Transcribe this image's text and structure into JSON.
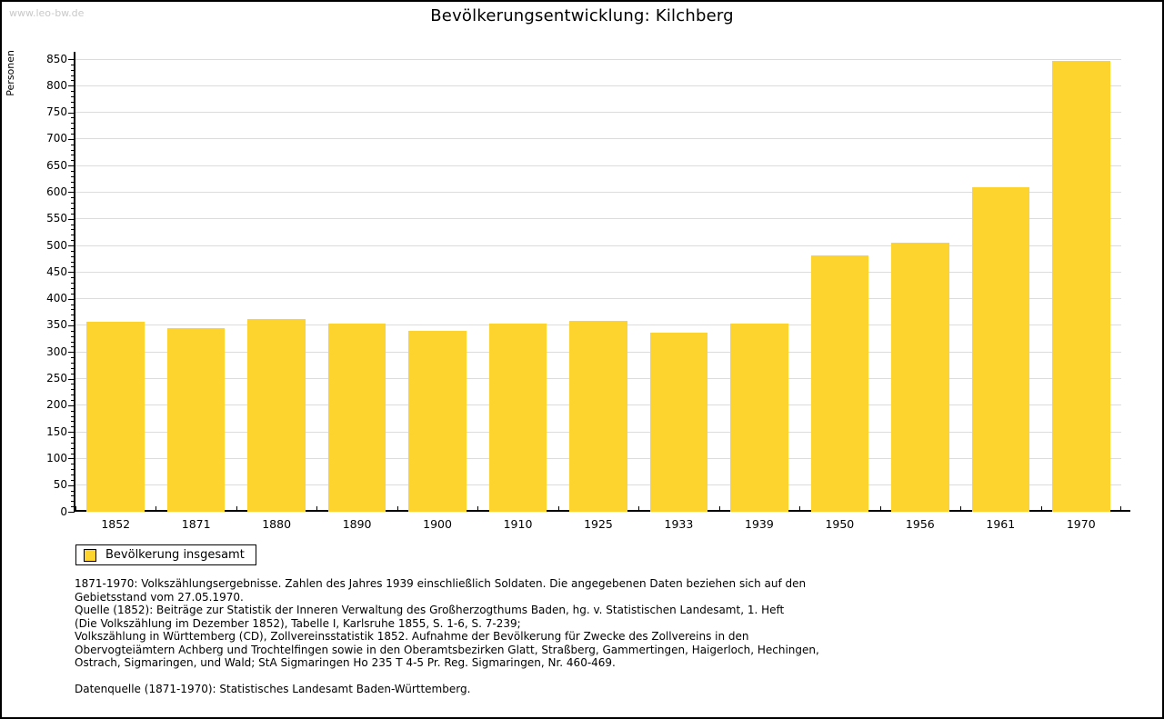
{
  "watermark": "www.leo-bw.de",
  "title": "Bevölkerungsentwicklung: Kilchberg",
  "legend": {
    "label": "Bevölkerung insgesamt"
  },
  "colors": {
    "bar": "#FDD32E",
    "grid": "#DCDCDC",
    "axis": "#000000",
    "watermark": "#C9C9C9"
  },
  "chart_data": {
    "type": "bar",
    "title": "Bevölkerungsentwicklung: Kilchberg",
    "xlabel": "",
    "ylabel": "Personen",
    "categories": [
      "1852",
      "1871",
      "1880",
      "1890",
      "1900",
      "1910",
      "1925",
      "1933",
      "1939",
      "1950",
      "1956",
      "1961",
      "1970"
    ],
    "series": [
      {
        "name": "Bevölkerung insgesamt",
        "values": [
          357,
          344,
          362,
          353,
          340,
          353,
          358,
          337,
          353,
          481,
          505,
          610,
          847
        ]
      }
    ],
    "ylim": [
      0,
      850
    ],
    "ytick_step": 50,
    "yminor_step": 10,
    "grid": true,
    "legend_position": "bottom-left"
  },
  "notes": {
    "lines": [
      "1871-1970: Volkszählungsergebnisse. Zahlen des Jahres 1939 einschließlich Soldaten. Die angegebenen Daten beziehen sich auf den",
      "Gebietsstand vom 27.05.1970.",
      "Quelle (1852): Beiträge zur Statistik der Inneren Verwaltung des Großherzogthums Baden, hg. v. Statistischen Landesamt, 1. Heft",
      "(Die Volkszählung im Dezember 1852), Tabelle I, Karlsruhe 1855, S. 1-6, S. 7-239;",
      "Volkszählung in Württemberg (CD), Zollvereinsstatistik 1852. Aufnahme der Bevölkerung für Zwecke des Zollvereins in den",
      "Obervogteiämtern Achberg und Trochtelfingen sowie in den Oberamtsbezirken Glatt, Straßberg, Gammertingen, Haigerloch, Hechingen,",
      "Ostrach, Sigmaringen, und Wald; StA Sigmaringen Ho 235 T 4-5 Pr. Reg. Sigmaringen, Nr. 460-469.",
      "",
      "Datenquelle (1871-1970): Statistisches Landesamt Baden-Württemberg."
    ]
  }
}
